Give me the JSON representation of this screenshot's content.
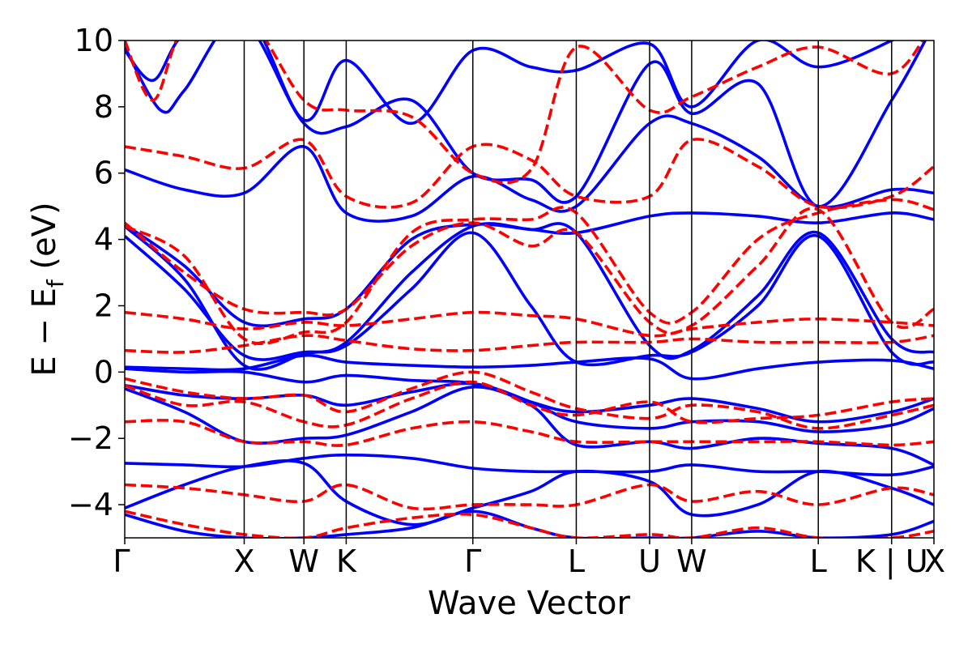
{
  "chart_data": {
    "type": "line",
    "title": "",
    "xlabel": "Wave Vector",
    "ylabel": "E − E_f (eV)",
    "ylabel_parts": {
      "main": "E − E",
      "subscript": "f",
      "unit": " (eV)"
    },
    "ylim": [
      -5,
      10
    ],
    "yticks": [
      -4,
      -2,
      0,
      2,
      4,
      6,
      8,
      10
    ],
    "ytick_labels": [
      "−4",
      "−2",
      "0",
      "2",
      "4",
      "6",
      "8",
      "10"
    ],
    "grid": false,
    "legend": "none",
    "kpath": {
      "positions": [
        0,
        0.5,
        0.75,
        0.927,
        1.457,
        1.89,
        2.197,
        2.373,
        2.903,
        3.21,
        3.387
      ],
      "labels": [
        "Γ",
        "X",
        "W",
        "K",
        "Γ",
        "L",
        "U",
        "W",
        "L",
        "K | U",
        "X"
      ]
    },
    "series": [
      {
        "style": "solid",
        "color": "#0000ff",
        "bands": [
          {
            "x": [
              0,
              0.25,
              0.5,
              0.75,
              0.927,
              1.2,
              1.457,
              1.7,
              1.89,
              2.197,
              2.373,
              2.65,
              2.903,
              3.21,
              3.387
            ],
            "y": [
              -4.3,
              -4.8,
              -5.0,
              -5.0,
              -4.9,
              -4.7,
              -4.2,
              -4.7,
              -5.0,
              -5.0,
              -5.0,
              -4.8,
              -5.0,
              -4.9,
              -4.5
            ]
          },
          {
            "x": [
              0,
              0.25,
              0.5,
              0.75,
              0.927,
              1.2,
              1.457,
              1.7,
              1.89,
              2.197,
              2.373,
              2.65,
              2.903,
              3.21,
              3.387
            ],
            "y": [
              -4.1,
              -3.4,
              -2.85,
              -2.75,
              -3.9,
              -4.6,
              -4.1,
              -3.6,
              -3.0,
              -3.3,
              -4.3,
              -4.0,
              -3.0,
              -3.5,
              -4.0
            ]
          },
          {
            "x": [
              0,
              0.25,
              0.5,
              0.75,
              0.927,
              1.2,
              1.457,
              1.7,
              1.89,
              2.197,
              2.373,
              2.65,
              2.903,
              3.21,
              3.387
            ],
            "y": [
              -2.75,
              -2.8,
              -2.85,
              -2.6,
              -2.5,
              -2.6,
              -2.9,
              -3.0,
              -3.0,
              -3.0,
              -2.8,
              -3.0,
              -3.0,
              -3.1,
              -2.85
            ]
          },
          {
            "x": [
              0,
              0.25,
              0.5,
              0.75,
              0.927,
              1.2,
              1.457,
              1.7,
              1.89,
              2.197,
              2.373,
              2.65,
              2.903,
              3.21,
              3.387
            ],
            "y": [
              -0.5,
              -1.2,
              -2.1,
              -2.0,
              -1.9,
              -1.2,
              -0.45,
              -1.0,
              -2.2,
              -2.1,
              -2.3,
              -2.0,
              -2.15,
              -2.3,
              -2.8
            ]
          },
          {
            "x": [
              0,
              0.25,
              0.5,
              0.75,
              0.927,
              1.2,
              1.457,
              1.7,
              1.89,
              2.197,
              2.373,
              2.65,
              2.903,
              3.21,
              3.387
            ],
            "y": [
              -0.4,
              -0.7,
              -0.8,
              -0.7,
              -1.0,
              -0.6,
              -0.35,
              -0.9,
              -1.5,
              -1.7,
              -1.5,
              -1.5,
              -1.8,
              -1.6,
              -1.1
            ]
          },
          {
            "x": [
              0,
              0.25,
              0.5,
              0.75,
              0.927,
              1.2,
              1.457,
              1.7,
              1.89,
              2.197,
              2.373,
              2.65,
              2.903,
              3.21,
              3.387
            ],
            "y": [
              0.1,
              0.0,
              0.0,
              -0.3,
              -0.1,
              -0.25,
              -0.35,
              -0.9,
              -1.2,
              -1.0,
              -0.8,
              -1.1,
              -1.5,
              -1.2,
              -0.8
            ]
          },
          {
            "x": [
              0,
              0.25,
              0.5,
              0.75,
              0.927,
              1.2,
              1.457,
              1.7,
              1.89,
              2.197,
              2.373,
              2.65,
              2.903,
              3.21,
              3.387
            ],
            "y": [
              0.15,
              0.1,
              0.1,
              0.5,
              0.3,
              0.2,
              0.15,
              0.2,
              0.3,
              0.4,
              -0.2,
              0.1,
              0.3,
              0.35,
              0.1
            ]
          },
          {
            "x": [
              0,
              0.25,
              0.5,
              0.75,
              0.927,
              1.2,
              1.457,
              1.7,
              1.89,
              2.197,
              2.373,
              2.65,
              2.903,
              3.21,
              3.387
            ],
            "y": [
              4.1,
              2.5,
              0.5,
              0.6,
              0.8,
              2.5,
              4.2,
              2.0,
              0.3,
              0.5,
              0.6,
              2.0,
              4.1,
              0.6,
              0.3
            ]
          },
          {
            "x": [
              0,
              0.25,
              0.5,
              0.75,
              0.927,
              1.2,
              1.457,
              1.7,
              1.89,
              2.197,
              2.373,
              2.65,
              2.903,
              3.21,
              3.387
            ],
            "y": [
              4.4,
              2.8,
              0.2,
              0.55,
              0.9,
              3.0,
              4.4,
              4.3,
              4.2,
              0.8,
              0.65,
              2.3,
              4.2,
              1.0,
              0.6
            ]
          },
          {
            "x": [
              0,
              0.25,
              0.5,
              0.75,
              0.927,
              1.2,
              1.457,
              1.7,
              1.89,
              2.197,
              2.373,
              2.65,
              2.903,
              3.21,
              3.387
            ],
            "y": [
              4.45,
              3.2,
              1.5,
              1.6,
              1.9,
              4.0,
              4.45,
              4.3,
              4.2,
              4.7,
              4.8,
              4.7,
              4.5,
              4.8,
              4.6
            ]
          },
          {
            "x": [
              0,
              0.25,
              0.5,
              0.75,
              0.927,
              1.2,
              1.457,
              1.7,
              1.89,
              2.197,
              2.373,
              2.65,
              2.903,
              3.21,
              3.387
            ],
            "y": [
              6.1,
              5.5,
              5.4,
              6.8,
              4.8,
              4.7,
              5.9,
              5.2,
              5.0,
              7.5,
              7.5,
              6.5,
              5.0,
              5.5,
              5.4
            ]
          },
          {
            "x": [
              0,
              0.12,
              0.25,
              0.5,
              0.75,
              0.927,
              1.2,
              1.457,
              1.7,
              1.89,
              2.197,
              2.373,
              2.65,
              2.903,
              3.21,
              3.387
            ],
            "y": [
              9.7,
              8.8,
              10.2,
              10.6,
              7.5,
              7.4,
              8.2,
              6.0,
              5.8,
              5.3,
              9.3,
              7.8,
              8.7,
              5.0,
              8.2,
              10.5
            ]
          },
          {
            "x": [
              0,
              0.15,
              0.25,
              0.5,
              0.75,
              0.927,
              1.2,
              1.457,
              1.7,
              1.89,
              2.197,
              2.373,
              2.65,
              2.903,
              3.21,
              3.387
            ],
            "y": [
              9.8,
              7.9,
              8.5,
              10.8,
              7.6,
              9.4,
              7.5,
              9.7,
              9.2,
              9.1,
              9.9,
              8.0,
              10.0,
              9.2,
              10.0,
              10.8
            ]
          }
        ]
      },
      {
        "style": "dashed",
        "color": "#ff0000",
        "bands": [
          {
            "x": [
              0,
              0.25,
              0.5,
              0.75,
              0.927,
              1.2,
              1.457,
              1.7,
              1.89,
              2.197,
              2.373,
              2.65,
              2.903,
              3.21,
              3.387
            ],
            "y": [
              -4.2,
              -4.6,
              -4.9,
              -5.0,
              -4.7,
              -4.4,
              -4.3,
              -4.7,
              -5.0,
              -4.9,
              -5.0,
              -4.7,
              -5.0,
              -5.0,
              -4.8
            ]
          },
          {
            "x": [
              0,
              0.25,
              0.5,
              0.75,
              0.927,
              1.2,
              1.457,
              1.7,
              1.89,
              2.197,
              2.373,
              2.65,
              2.903,
              3.21,
              3.387
            ],
            "y": [
              -3.4,
              -3.5,
              -3.7,
              -3.9,
              -3.4,
              -4.1,
              -4.0,
              -4.0,
              -4.0,
              -3.4,
              -3.9,
              -3.6,
              -4.0,
              -3.5,
              -3.7
            ]
          },
          {
            "x": [
              0,
              0.25,
              0.5,
              0.75,
              0.927,
              1.2,
              1.457,
              1.7,
              1.89,
              2.197,
              2.373,
              2.65,
              2.903,
              3.21,
              3.387
            ],
            "y": [
              -1.5,
              -1.5,
              -2.1,
              -2.1,
              -2.2,
              -1.7,
              -1.5,
              -1.8,
              -2.1,
              -2.1,
              -2.1,
              -2.1,
              -2.1,
              -2.2,
              -2.1
            ]
          },
          {
            "x": [
              0,
              0.25,
              0.5,
              0.75,
              0.927,
              1.2,
              1.457,
              1.7,
              1.89,
              2.197,
              2.373,
              2.65,
              2.903,
              3.21,
              3.387
            ],
            "y": [
              -0.4,
              -1.0,
              -0.9,
              -1.5,
              -1.6,
              -0.8,
              -0.3,
              -1.0,
              -1.3,
              -0.9,
              -1.5,
              -1.4,
              -1.3,
              -0.9,
              -0.8
            ]
          },
          {
            "x": [
              0,
              0.25,
              0.5,
              0.75,
              0.927,
              1.2,
              1.457,
              1.7,
              1.89,
              2.197,
              2.373,
              2.65,
              2.903,
              3.21,
              3.387
            ],
            "y": [
              -0.2,
              -0.6,
              -0.8,
              -0.7,
              -1.2,
              -0.5,
              0.0,
              -0.6,
              -1.1,
              -1.4,
              -1.0,
              -1.2,
              -1.7,
              -1.3,
              -1.0
            ]
          },
          {
            "x": [
              0,
              0.25,
              0.5,
              0.75,
              0.927,
              1.2,
              1.457,
              1.7,
              1.89,
              2.197,
              2.373,
              2.65,
              2.903,
              3.21,
              3.387
            ],
            "y": [
              0.65,
              0.6,
              0.8,
              1.1,
              0.95,
              0.7,
              0.65,
              0.8,
              0.9,
              0.9,
              1.0,
              0.9,
              0.9,
              0.9,
              1.1
            ]
          },
          {
            "x": [
              0,
              0.25,
              0.5,
              0.75,
              0.927,
              1.2,
              1.457,
              1.7,
              1.89,
              2.197,
              2.373,
              2.65,
              2.903,
              3.21,
              3.387
            ],
            "y": [
              1.8,
              1.6,
              1.3,
              1.5,
              1.4,
              1.6,
              1.8,
              1.7,
              1.6,
              1.1,
              1.3,
              1.5,
              1.6,
              1.5,
              1.4
            ]
          },
          {
            "x": [
              0,
              0.25,
              0.5,
              0.75,
              0.927,
              1.2,
              1.457,
              1.7,
              1.89,
              2.197,
              2.373,
              2.65,
              2.903,
              3.21,
              3.387
            ],
            "y": [
              4.5,
              3.0,
              1.9,
              1.8,
              1.9,
              3.8,
              4.5,
              3.8,
              4.2,
              1.5,
              1.4,
              3.2,
              4.9,
              1.5,
              1.9
            ]
          },
          {
            "x": [
              0,
              0.25,
              0.5,
              0.75,
              0.927,
              1.2,
              1.457,
              1.7,
              1.89,
              2.197,
              2.373,
              2.65,
              2.903,
              3.21,
              3.387
            ],
            "y": [
              4.4,
              3.5,
              1.0,
              1.2,
              1.5,
              4.2,
              4.6,
              4.6,
              4.8,
              1.8,
              1.8,
              4.0,
              4.8,
              5.2,
              4.9
            ]
          },
          {
            "x": [
              0,
              0.25,
              0.5,
              0.75,
              0.927,
              1.2,
              1.457,
              1.7,
              1.89,
              2.197,
              2.373,
              2.65,
              2.903,
              3.21,
              3.387
            ],
            "y": [
              6.8,
              6.5,
              6.15,
              7.0,
              5.3,
              5.1,
              6.8,
              6.4,
              5.3,
              5.3,
              7.0,
              6.2,
              5.0,
              5.3,
              6.2
            ]
          },
          {
            "x": [
              0,
              0.12,
              0.25,
              0.5,
              0.75,
              0.927,
              1.2,
              1.457,
              1.7,
              1.89,
              2.197,
              2.373,
              2.65,
              2.903,
              3.21,
              3.387
            ],
            "y": [
              10.0,
              8.2,
              10.4,
              10.8,
              8.2,
              7.9,
              7.7,
              6.0,
              6.1,
              9.8,
              7.9,
              8.3,
              9.2,
              9.8,
              9.0,
              10.6
            ]
          }
        ]
      }
    ]
  }
}
